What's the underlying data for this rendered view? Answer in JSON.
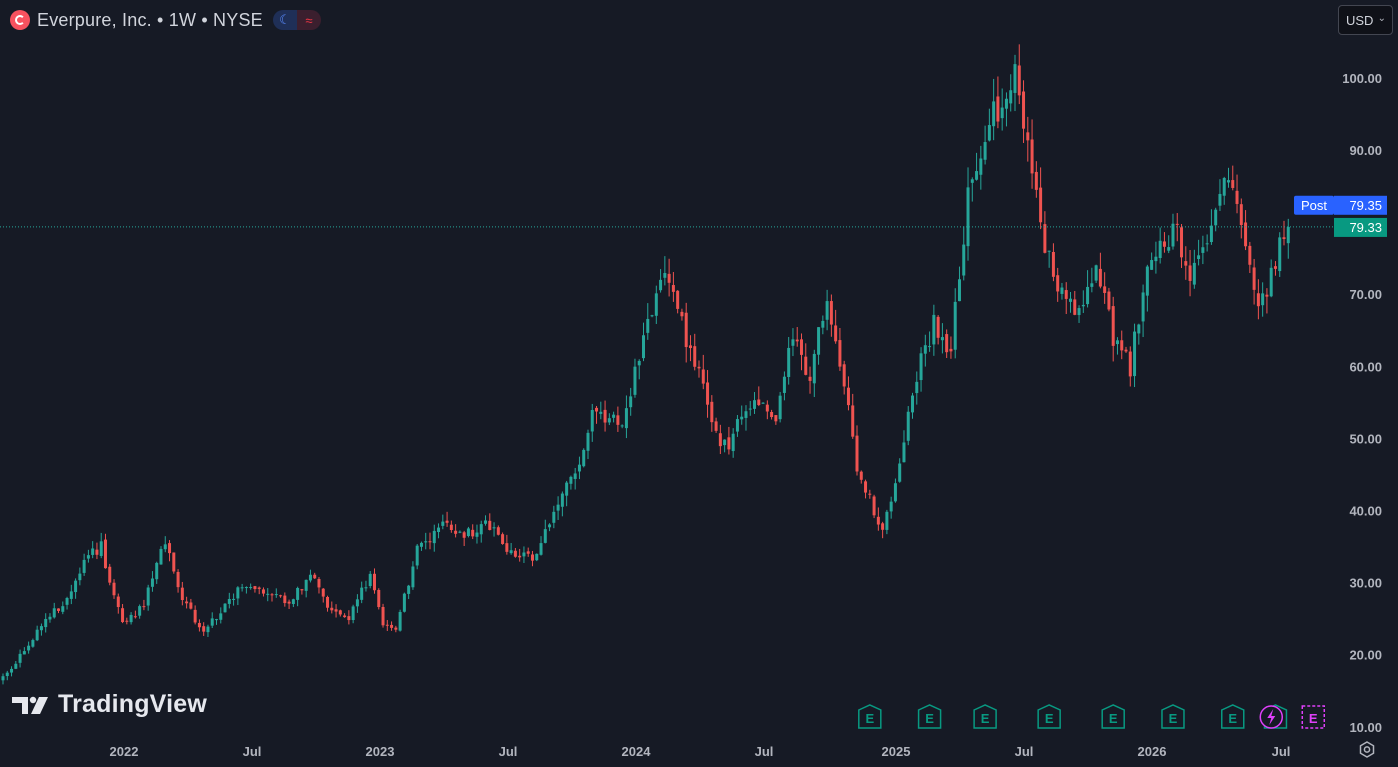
{
  "header": {
    "title": "Everpure, Inc. • 1W • NYSE",
    "moon_icon": "moon-icon",
    "wave_icon": "wave-icon"
  },
  "currency": {
    "label": "USD",
    "icon": "chevron-down-icon"
  },
  "watermark": {
    "text": "TradingView"
  },
  "price_tags": {
    "post": {
      "label": "Post",
      "value": "79.35",
      "color": "#2962ff"
    },
    "last": {
      "value": "79.33",
      "color": "#089981"
    }
  },
  "events": {
    "earnings_label": "E",
    "earnings_color": "#089981",
    "upcoming_color": "#e040fb",
    "dividend_icon": "lightning-icon"
  },
  "colors": {
    "up": "#26a69a",
    "down": "#ef5350",
    "background": "#161a25",
    "axis_text": "#b2b5be"
  },
  "chart_data": {
    "type": "candlestick",
    "interval": "1W",
    "y_ticks": [
      "100.00",
      "90.00",
      "80.00",
      "70.00",
      "60.00",
      "50.00",
      "40.00",
      "30.00",
      "20.00",
      "10.00"
    ],
    "ylim": [
      10,
      103
    ],
    "x_ticks": [
      "2022",
      "Jul",
      "2023",
      "Jul",
      "2024",
      "Jul",
      "2025",
      "Jul",
      "2026",
      "Jul"
    ],
    "last_price": 79.33,
    "post_price": 79.35,
    "close_path": [
      [
        0,
        17
      ],
      [
        6,
        21
      ],
      [
        10,
        25
      ],
      [
        14,
        27
      ],
      [
        19,
        33
      ],
      [
        23,
        35
      ],
      [
        28,
        24
      ],
      [
        33,
        27
      ],
      [
        38,
        36
      ],
      [
        42,
        28
      ],
      [
        47,
        23
      ],
      [
        52,
        27
      ],
      [
        57,
        30
      ],
      [
        62,
        29
      ],
      [
        67,
        27
      ],
      [
        72,
        31
      ],
      [
        76,
        27
      ],
      [
        81,
        25
      ],
      [
        86,
        31
      ],
      [
        89,
        24
      ],
      [
        92,
        23
      ],
      [
        97,
        35
      ],
      [
        103,
        38
      ],
      [
        108,
        37
      ],
      [
        114,
        38
      ],
      [
        118,
        35
      ],
      [
        124,
        33
      ],
      [
        128,
        39
      ],
      [
        134,
        45
      ],
      [
        138,
        54
      ],
      [
        142,
        52
      ],
      [
        146,
        53
      ],
      [
        150,
        64
      ],
      [
        155,
        72
      ],
      [
        159,
        66
      ],
      [
        163,
        59
      ],
      [
        167,
        50
      ],
      [
        170,
        49
      ],
      [
        174,
        55
      ],
      [
        178,
        56
      ],
      [
        181,
        53
      ],
      [
        185,
        64
      ],
      [
        189,
        59
      ],
      [
        193,
        70
      ],
      [
        196,
        61
      ],
      [
        200,
        46
      ],
      [
        206,
        37
      ],
      [
        210,
        47
      ],
      [
        214,
        59
      ],
      [
        218,
        66
      ],
      [
        222,
        62
      ],
      [
        226,
        84
      ],
      [
        230,
        92
      ],
      [
        234,
        97
      ],
      [
        237,
        100
      ],
      [
        240,
        90
      ],
      [
        244,
        77
      ],
      [
        248,
        70
      ],
      [
        252,
        67
      ],
      [
        256,
        73
      ],
      [
        260,
        64
      ],
      [
        264,
        60
      ],
      [
        268,
        74
      ],
      [
        272,
        78
      ],
      [
        275,
        79
      ],
      [
        278,
        72
      ],
      [
        282,
        76
      ],
      [
        286,
        88
      ],
      [
        290,
        80
      ],
      [
        293,
        70
      ],
      [
        296,
        69
      ],
      [
        298,
        75
      ],
      [
        301,
        79.33
      ]
    ],
    "earnings_weeks": [
      203,
      217,
      230,
      245,
      260,
      274,
      288,
      298
    ],
    "upcoming_events": [
      "dividend",
      "earnings"
    ]
  }
}
